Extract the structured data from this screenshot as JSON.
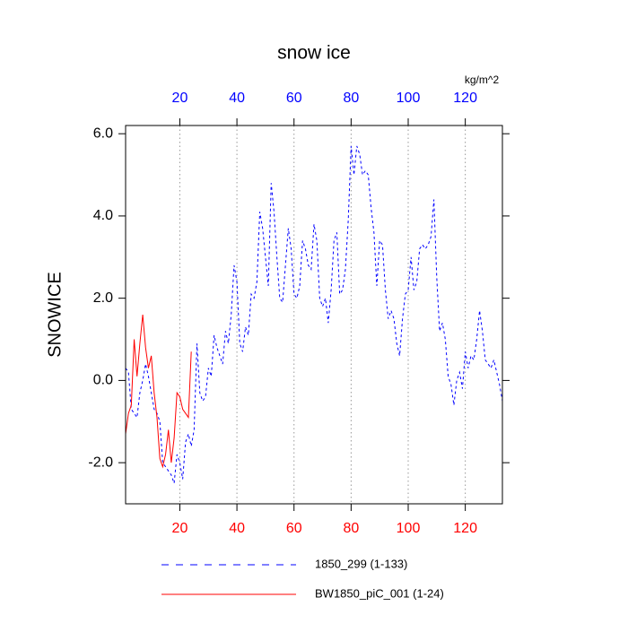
{
  "chart_data": {
    "type": "line",
    "title": "snow ice",
    "ylabel": "SNOWICE",
    "x2label": "kg/m^2",
    "xlim": [
      1,
      133
    ],
    "ylim": [
      -3,
      6.2
    ],
    "xticks": [
      20,
      40,
      60,
      80,
      100,
      120
    ],
    "xtick_color": "#ff0000",
    "x2ticks": [
      20,
      40,
      60,
      80,
      100,
      120
    ],
    "x2tick_color": "#0000ff",
    "yticks": [
      {
        "value": -2,
        "label": "-2.0"
      },
      {
        "value": 0,
        "label": "0.0"
      },
      {
        "value": 2,
        "label": "2.0"
      },
      {
        "value": 4,
        "label": "4.0"
      },
      {
        "value": 6,
        "label": "6.0"
      }
    ],
    "xgrid": true,
    "series": [
      {
        "name": "1850_299 (1-133)",
        "color": "#0000ff",
        "dash": "dashed",
        "x": [
          1,
          2,
          3,
          4,
          5,
          6,
          7,
          8,
          9,
          10,
          11,
          12,
          13,
          14,
          15,
          16,
          17,
          18,
          19,
          20,
          21,
          22,
          23,
          24,
          25,
          26,
          27,
          28,
          29,
          30,
          31,
          32,
          33,
          34,
          35,
          36,
          37,
          38,
          39,
          40,
          41,
          42,
          43,
          44,
          45,
          46,
          47,
          48,
          49,
          50,
          51,
          52,
          53,
          54,
          55,
          56,
          57,
          58,
          59,
          60,
          61,
          62,
          63,
          64,
          65,
          66,
          67,
          68,
          69,
          70,
          71,
          72,
          73,
          74,
          75,
          76,
          77,
          78,
          79,
          80,
          81,
          82,
          83,
          84,
          85,
          86,
          87,
          88,
          89,
          90,
          91,
          92,
          93,
          94,
          95,
          96,
          97,
          98,
          99,
          100,
          101,
          102,
          103,
          104,
          105,
          106,
          107,
          108,
          109,
          110,
          111,
          112,
          113,
          114,
          115,
          116,
          117,
          118,
          119,
          120,
          121,
          122,
          123,
          124,
          125,
          126,
          127,
          128,
          129,
          130,
          131,
          132,
          133
        ],
        "values": [
          0.3,
          0.2,
          -0.7,
          -0.8,
          -0.9,
          -0.3,
          0.0,
          0.4,
          0.1,
          -0.3,
          -0.7,
          -0.8,
          -1.0,
          -2.0,
          -2.1,
          -2.2,
          -2.3,
          -2.5,
          -1.8,
          -2.0,
          -2.4,
          -1.5,
          -1.3,
          -1.6,
          -1.2,
          0.9,
          -0.3,
          -0.5,
          -0.4,
          0.3,
          0.1,
          1.1,
          0.8,
          0.6,
          0.4,
          1.2,
          0.9,
          1.6,
          2.8,
          2.4,
          0.9,
          0.7,
          1.3,
          1.1,
          2.1,
          2.0,
          2.4,
          4.1,
          3.7,
          3.0,
          2.3,
          4.8,
          4.1,
          3.0,
          2.0,
          1.9,
          2.8,
          3.7,
          3.2,
          2.1,
          2.0,
          2.3,
          3.4,
          3.2,
          2.8,
          2.7,
          3.8,
          3.4,
          2.0,
          1.8,
          2.0,
          1.4,
          2.2,
          3.4,
          3.6,
          2.1,
          2.2,
          2.7,
          3.9,
          5.7,
          5.0,
          5.7,
          5.5,
          5.0,
          5.1,
          5.0,
          4.2,
          3.6,
          2.3,
          3.4,
          3.3,
          2.2,
          1.5,
          1.7,
          1.5,
          0.9,
          0.6,
          1.5,
          2.1,
          2.2,
          3.0,
          2.2,
          2.4,
          3.2,
          3.3,
          3.2,
          3.3,
          3.5,
          4.4,
          2.5,
          1.2,
          1.4,
          1.0,
          0.1,
          -0.1,
          -0.6,
          0.0,
          0.2,
          -0.2,
          0.7,
          0.3,
          0.6,
          0.5,
          1.0,
          1.7,
          1.2,
          0.5,
          0.4,
          0.3,
          0.5,
          0.2,
          -0.1,
          -0.5
        ]
      },
      {
        "name": "BW1850_piC_001 (1-24)",
        "color": "#ff0000",
        "dash": "solid",
        "x": [
          1,
          2,
          3,
          4,
          5,
          6,
          7,
          8,
          9,
          10,
          11,
          12,
          13,
          14,
          15,
          16,
          17,
          18,
          19,
          20,
          21,
          22,
          23,
          24
        ],
        "values": [
          -1.3,
          -0.8,
          -0.6,
          1.0,
          0.1,
          0.9,
          1.6,
          0.8,
          0.3,
          0.6,
          -0.3,
          -0.9,
          -1.9,
          -2.1,
          -1.8,
          -1.2,
          -2.0,
          -1.4,
          -0.3,
          -0.4,
          -0.7,
          -0.8,
          -0.9,
          0.7
        ]
      }
    ]
  }
}
